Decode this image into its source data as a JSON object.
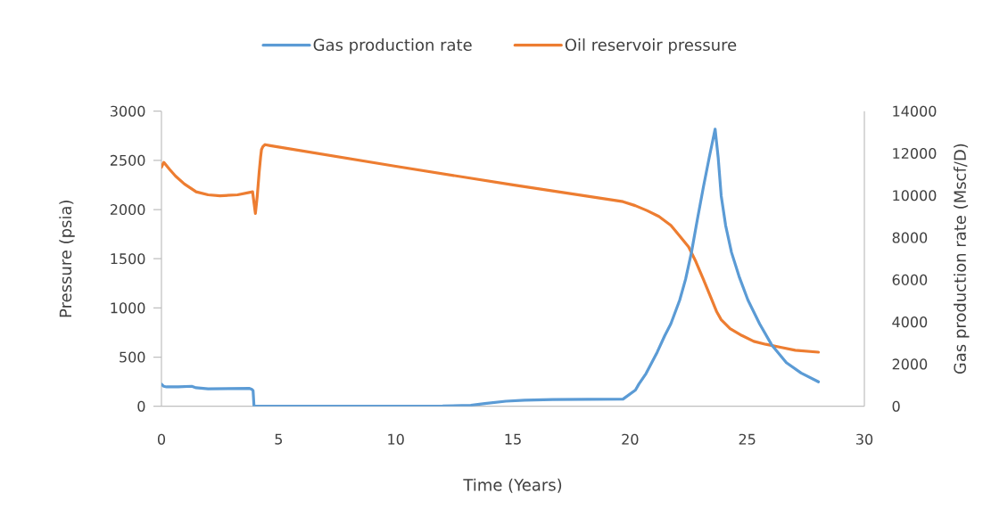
{
  "chart_data": {
    "type": "line",
    "xlabel": "Time (Years)",
    "ylabel": "Pressure (psia)",
    "y2label": "Gas production rate (Mscf/D)",
    "xlim": [
      0,
      30
    ],
    "xticks": [
      0,
      5,
      10,
      15,
      20,
      25,
      30
    ],
    "ylim": [
      0,
      3000
    ],
    "yticks": [
      0,
      500,
      1000,
      1500,
      2000,
      2500,
      3000
    ],
    "y2lim": [
      0,
      14000
    ],
    "y2ticks": [
      0,
      2000,
      4000,
      6000,
      8000,
      10000,
      12000,
      14000
    ],
    "legend": "top",
    "marker": "none",
    "line_style": "solid",
    "series": [
      {
        "name": "Gas production rate",
        "color": "#5b9bd5",
        "axis": "y2",
        "x": [
          0,
          0.09,
          0.22,
          0.72,
          1.29,
          1.48,
          1.99,
          3.76,
          3.86,
          3.91,
          3.95,
          8,
          12,
          13.2,
          13.8,
          14.7,
          15.5,
          16.7,
          19.7,
          20.23,
          20.38,
          20.68,
          21.16,
          21.48,
          21.74,
          22.12,
          22.37,
          22.62,
          22.87,
          23.13,
          23.38,
          23.63,
          23.76,
          23.89,
          24.08,
          24.33,
          24.65,
          25.03,
          25.53,
          26.04,
          26.67,
          27.3,
          28.04
        ],
        "values": [
          1050,
          950,
          920,
          920,
          950,
          880,
          830,
          850,
          800,
          740,
          0,
          0,
          10,
          50,
          130,
          240,
          290,
          320,
          340,
          770,
          1060,
          1550,
          2570,
          3350,
          3910,
          5040,
          6030,
          7300,
          8850,
          10400,
          11810,
          13150,
          11810,
          9980,
          8570,
          7300,
          6170,
          5040,
          3910,
          2920,
          2070,
          1580,
          1160
        ]
      },
      {
        "name": "Oil reservoir pressure",
        "color": "#ed7d31",
        "x": [
          0,
          0.1,
          0.34,
          0.6,
          0.98,
          1.48,
          1.99,
          2.5,
          3.25,
          3.89,
          3.96,
          4.01,
          4.09,
          4.17,
          4.23,
          4.27,
          4.33,
          4.42,
          4.65,
          10,
          15,
          19.7,
          20.22,
          20.72,
          21.23,
          21.74,
          22.12,
          22.5,
          22.81,
          23.13,
          23.44,
          23.7,
          23.89,
          24.27,
          24.77,
          25.28,
          25.79,
          26.42,
          27.05,
          28.04
        ],
        "values": [
          2430,
          2480,
          2410,
          2340,
          2260,
          2180,
          2150,
          2140,
          2150,
          2180,
          2050,
          1960,
          2140,
          2380,
          2530,
          2610,
          2640,
          2660,
          2650,
          2440,
          2250,
          2080,
          2040,
          1990,
          1930,
          1840,
          1730,
          1620,
          1470,
          1290,
          1110,
          960,
          880,
          790,
          720,
          660,
          630,
          600,
          570,
          550
        ]
      }
    ]
  }
}
